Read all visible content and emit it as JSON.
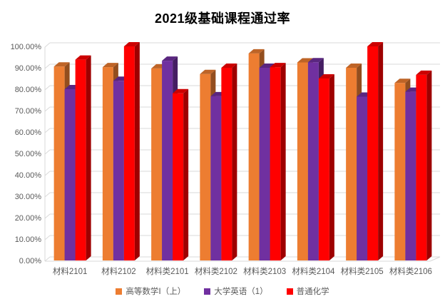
{
  "window": {
    "background": "#FFFFFF"
  },
  "chart_data": {
    "type": "bar",
    "variant": "3d-clustered-column",
    "title": "2021级基础课程通过率",
    "categories": [
      "材料2101",
      "材料2102",
      "材料类2101",
      "材料类2102",
      "材料类2103",
      "材料类2104",
      "材料类2105",
      "材料类2106"
    ],
    "series": [
      {
        "name": "高等数学Ⅰ（上）",
        "color": "#ED7D31",
        "values": [
          90.6,
          90.3,
          89.7,
          87.1,
          96.7,
          92.5,
          90.0,
          82.9
        ]
      },
      {
        "name": "大学英语（1）",
        "color": "#7030A0",
        "values": [
          80.0,
          83.9,
          93.3,
          76.7,
          90.0,
          92.6,
          76.5,
          78.8
        ]
      },
      {
        "name": "普通化学",
        "color": "#FF0000",
        "values": [
          93.8,
          100.0,
          78.1,
          90.0,
          90.3,
          85.0,
          100.0,
          86.7
        ]
      }
    ],
    "xlabel": "",
    "ylabel": "",
    "ylim": [
      0,
      100
    ],
    "y_tick_step": 10,
    "y_ticks": [
      "0.00%",
      "10.00%",
      "20.00%",
      "30.00%",
      "40.00%",
      "50.00%",
      "60.00%",
      "70.00%",
      "80.00%",
      "90.00%",
      "100.00%"
    ],
    "grid": true,
    "legend_position": "bottom",
    "gridline_color": "#D9D9D9",
    "axis_text_color": "#595959",
    "title_color": "#000000"
  }
}
